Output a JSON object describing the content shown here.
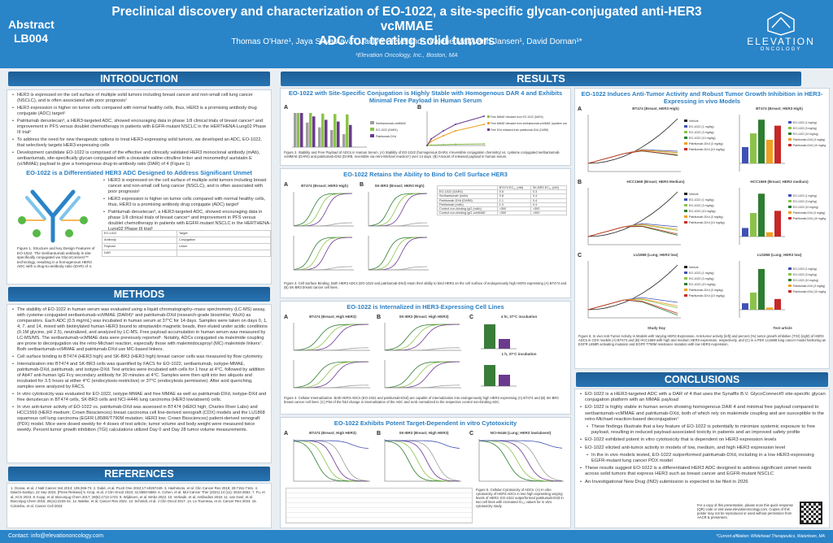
{
  "header": {
    "abstract_label": "Abstract",
    "abstract_id": "LB004",
    "title_line1": "Preclinical discovery and characterization of EO-1022, a site-specific glycan-conjugated anti-HER3 vcMMAE",
    "title_line2": "ADC for treating solid tumors",
    "authors": "Thomas O'Hare¹, Jaya Srivastava¹, Jaclyn Cleveland¹, Valerie Malyvanh Jansen¹, David Dornan¹*",
    "affiliation": "¹Elevation Oncology, Inc., Boston, MA",
    "logo_text": "ELEVATION",
    "logo_sub": "ONCOLOGY"
  },
  "introduction": {
    "heading": "INTRODUCTION",
    "bullets": [
      "HER3 is expressed on the cell surface of multiple solid tumors including breast cancer and non-small cell lung cancer (NSCLC), and is often associated with poor prognosis¹",
      "HER3 expression is higher on tumor cells compared with normal healthy cells, thus, HER3 is a promising antibody drug conjugate (ADC) target²",
      "Patritumab deruxtecan³, a HER3-targeted ADC, showed encouraging data in phase 1/II clinical trials of breast cancer⁴ and improvement in PFS versus doublet chemotherapy in patients with EGFR-mutant NSCLC in the HERTHENA-Lung02 Phase III trial⁵",
      "To address the need for new therapeutic options to treat HER3-expressing solid tumors, we developed an ADC, EO-1022, that selectively targets HER3-expressing cells",
      "Development candidate EO-1022 is comprised of the effective and clinically validated HER3 monoclonal antibody (mAb), seribantumab, site-specifically glycan-conjugated with a cleavable valine-citrulline linker and monomethyl auristatin E (vcMMAE) payload to give a homogenous drug-to-antibody ratio (DAR) of 4 (Figure 1)"
    ],
    "subheading": "EO-1022 is a Differentiated HER3 ADC Designed to Address Significant Unmet",
    "repeat_bullets": [
      "HER3 is expressed on the cell surface of multiple solid tumors including breast cancer and non-small cell lung cancer (NSCLC), and is often associated with poor prognosis¹",
      "HER3 expression is higher on tumor cells compared with normal healthy cells, thus, HER3 is a promising antibody drug conjugate (ADC) target²",
      "Patritumab deruxtecan³, a HER3-targeted ADC, showed encouraging data in phase 1/II clinical trials of breast cancer⁴ and improvement in PFS versus doublet chemotherapy in patients with EGFR-mutant NSCLC in the HERTHENA-Lung02 Phase III trial⁵"
    ],
    "fig1_caption": "Figure 1. Structure and key Design Features of EO-1022. The Seribantumab antibody is site-specifically conjugated via GlycoConnect™ technology, resulting in a homogenous HER3 ADC with a drug-to-antibody ratio (DAR) of 4.",
    "diagram_labels": [
      "EO-1022",
      "Target",
      "Antibody",
      "Conjugation",
      "Payload",
      "Linker",
      "DAR"
    ]
  },
  "methods": {
    "heading": "METHODS",
    "bullets": [
      "The stability of EO-1022 in human serum was evaluated using a liquid chromatography–mass spectrometry (LC-MS) assay, with cysteine-conjugated seribantumab-vcMMAE (DAR4)⁶ and patritumab-DXd (research-grade biosimilar; WuXi) as comparators. Each ADC (0.5 mg/mL) was incubated in human serum at 37°C for 14 days. Samples were taken on days 0, 1, 4, 7, and 14, mixed with biotinylated human HER3 bound to streptavidin magnetic beads, then eluted under acidic conditions (0.1M glycine, pH 2.5), neutralized, and analyzed by LC-MS. Free payload accumulation in human serum was measured by LC-MS/MS. The seribantumab-vcMMAE data were previously reported⁶. Notably, ADCs conjugated via maleimide coupling are prone to deconjugation via the retro-Michael reaction, especially those with maleimidocaproyl (MC) maleimide linkers⁷. Both seribantumab-vcMMAE and patritumab-DXd use MC-based linkers.",
      "Cell surface binding to BT474 (HER3 high) and SK-BR3 (HER3 high) breast cancer cells was measured by flow cytometry.",
      "Internalization into BT474 and SK-BR3 cells was quantified by FACS for EO-1022, seribantumab, isotype-MMAE, patritumab-DXd, patritumab, and isotype-DXd. Test articles were incubated with cells for 1 hour at 4°C, followed by addition of Ab47 anti-human IgG Fcγ secondary antibody for 30 minutes at 4°C. Samples were then split into two aliquots and incubated for 3.5 hours at either 4°C (endocytosis-restrictive) or 37°C (endocytosis permissive). After acid quenching, samples were analyzed by FACS.",
      "In vitro cytotoxicity was evaluated for EO-1022, isotype-MMAE and free MMAE as well as patritumab-DXd, isotype-DXd and free deruxtecan in BT474 cells, SK-BR3 cells and NCI-H446 lung carcinoma (HER3 low/absent) cells.",
      "In vivo anti-tumor activity of EO-1022 vs. patritumab-DXd was assessed in BT474 (HER3 high; Charles River Labs) and HCC1569 (HER3 medium; Crown Biosciences) breast carcinoma cell line-derived xenograft (CDX) models and the LU1868 squamous cell lung carcinoma (EGFR L858R/T790M mutation; HER3 low; Crown Biosciences) patient-derived xenograft (PDX) model. Mice were dosed weekly for 4 doses of test article; tumor volume and body weight were measured twice weekly. Percent tumor growth inhibition (TGI) calculations utilized Day 0 and Day 28 tumor volume measurements."
    ]
  },
  "references": {
    "heading": "REFERENCES",
    "text": "1. Ocana, et al. J Natl Cancer Inst 2013; 105:266-73. 2. Dubé, et al. PLoS One 2022;17:e0267449. 3. Hashimoto, et al. Clin Cancer Res 2019; 25:7151-7161. 4. Daiichi-Sankyo, 22 Sep 2023. [Press Release] 5. Krop, et al. J Clin Oncol 2023; 41:5550-5560. 6. Cohen, et al. Mol Cancer Ther (2021) 14 (11): 2642-2652. 7. Fu, et al. ACS 2023. 8. Kopp, et al. Bioconjug Chem 2017; 28(6):1713-1723. 9. Wijdeven, et al. MAbs 2022. 10. Verkade, et al. Antibodies 2018. 11. van Geel, et al. Bioconjug Chem 2015; 26(11):2233-42. 12. Bakker, et al. Cancer Res 2022. 13. Schmidt, et al. J Clin Oncol 2017. 14. Le Tourneau, et al. Cancer Res 2023. 15. Colombo, et al. Cancer Cell 2023."
  },
  "results": {
    "heading": "RESULTS",
    "stability": {
      "subheading": "EO-1022 with Site-Specific Conjugation is Highly Stable with Homogenous DAR 4 and Exhibits Minimal Free Payload in Human Serum",
      "legend_a": [
        "Seribantumab-vcMMAE",
        "EO-1022 (DAR4)",
        "Patritumab-DXd"
      ],
      "legend_b": [
        "Free MMAE released from EO-1022 (DAR4)",
        "Free MMAE released from seribantumab-vcMMAE (cysteine conjugated)",
        "Free DXd released from patritumab-DXd (DAR8)"
      ],
      "xlabel_b": "Time (Days) in Human Serum",
      "ylabel_b": "Free payload (%)",
      "caption": "Figure 2. Stability and Free Payload of ADCs in Human Serum. (A) Stability of EO-1022 (homogenous DAR4, irreversible conjugation chemistry) vs. cysteine conjugated seribantumab-vcMMAE (DAR4) and patritumab-DXd (DAR8, reversible via retro-Michael reaction⁷) over 14 days. (B) Amount of released payload in human serum."
    },
    "binding": {
      "subheading": "EO-1022 Retains the Ability to Bind to Cell Surface HER3",
      "panel_a_title": "BT474 (Breast; HER3 High)",
      "panel_b_title": "SK-BR3 (Breast; HER3 High)",
      "legend": [
        "EO-1022 (DAR4)",
        "Seribantumab",
        "Control non-binding IgG",
        "Control non-binding IgG-vcMMAE (DAR4)"
      ],
      "table_header": [
        "",
        "BT474 EC₅₀ (nM)",
        "SK-BR3 EC₅₀ (nM)"
      ],
      "table_rows": [
        [
          "EO-1022 (DAR4)",
          "0.6",
          "0.3"
        ],
        [
          "Seribantumab (mAb)",
          "0.8",
          "0.4"
        ],
        [
          "Patritumab-DXd (DAR8)",
          "1.1",
          "0.4"
        ],
        [
          "Patritumab (mAb)",
          "1.0",
          "0.4"
        ],
        [
          "Control non-binding IgG (mAb)",
          ">300",
          ">300"
        ],
        [
          "Control non-binding IgG-vcMMAE",
          ">300",
          ">300"
        ]
      ],
      "caption": "Figure 3. Cell Surface Binding. Both HER3 ADCs (EO-1022 and patritumab-DXd) retain their ability to bind HER3 on the cell surface of endogenously high HER3 expressing (A) BT474 and (B) SK-BR3 breast cancer cell lines."
    },
    "internalization": {
      "subheading": "EO-1022 is Internalized in HER3-Expressing Cell Lines",
      "panel_a_title": "BT474 (Breast; High HER3)",
      "panel_b_title": "SK-BR3 (Breast; High HER3)",
      "panel_c_title_1": "4 hr, 37°C incubation",
      "panel_c_title_2": "1 h, 37°C incubation",
      "legend": [
        "EO-1022 (DAR4)",
        "Patritumab-DXd (DAR8)"
      ],
      "caption": "Figure 4. Cellular Internalization. Both HER3 ADCs (EO-1022 and patritumab-DXd) are capable of internalization into endogenously high HER3 expressing (A) BT474 and (B) SK-BR3 breast cancer cell lines. (C) Plot of the fold change in internalization of the ADC and mAb normalized to the respective control non-binding ADC."
    },
    "cytotox": {
      "subheading": "EO-1022 Exhibits Potent Target-Dependent in vitro Cytotoxicity",
      "panel_a_title": "BT474 (Breast; High HER3)",
      "panel_b_title": "SK-BR3 (Breast; High HER3)",
      "panel_c_title": "NCI-H446 (Lung; HER3 low/absent)",
      "caption": "Figure 5. Cellular Cytotoxicity of ADCs. (A) In vitro cytotoxicity of HER3 ADCs in two high expressing varying levels of HER3. EO-1022 outperformed patritumab-DXd in two cell lines with increased IC₅₀ values for in vitro cytotoxicity study."
    },
    "in_vivo": {
      "subheading": "EO-1022 Induces Anti-Tumor Activity and Robust Tumor Growth Inhibition in HER3-Expressing in vivo Models",
      "panels": [
        {
          "title": "BT474 (Breast, HER3 High)",
          "bar_title": "BT474 (Breast; HER3 High)"
        },
        {
          "title": "HCC1569 (Breast; HER3 Medium)",
          "bar_title": "HCC1569 (Breast; HER3 medium)"
        },
        {
          "title": "LU1868 (Lung; HER3 low)",
          "bar_title": "LU1868 (Lung; HER3 low)"
        }
      ],
      "xlabel": "Study Day",
      "bar_xlabel": "Test article",
      "legend": [
        "Vehicle",
        "EO-1022 (1 mg/kg)",
        "EO-1022 (3 mg/kg)",
        "EO-1022 (10 mg/kg)",
        "Patritumab-DXd (3 mg/kg)",
        "Patritumab-DXd (10 mg/kg)"
      ],
      "caption": "Figure 6. In vivo Anti-Tumor Activity in Models with Varying HER3 Expression. Anti-tumor activity (left) and percent (%) tumor growth inhibition (TGI) (right) of HER3 ADCs in CDX models (A) BT474 and (B) HCC1569 with high and medium HER3 expression, respectively, and (C) in a PDX LU1868 lung cancer model harboring an EGFR L858R activating mutation and EGFR T790M resistance mutation with low HER3 expression."
    }
  },
  "conclusions": {
    "heading": "CONCLUSIONS",
    "bullets": [
      "EO-1022 is a HER3-targeted ADC with a DAR of 4 that uses the Synaffix B.V. GlycoConnect® site-specific glycan conjugation platform with an MMAE payload",
      "EO-1022 is highly stable in human serum showing homogenous DAR 4 and minimal free payload compared to seribantumab-vcMMAE and patritumab-DXd, both of which rely on maleimide coupling and are susceptible to the retro-Michael reaction-based deconjugation⁷",
      "These findings illustrate that a key feature of EO-1022 is potentially to minimize systemic exposure to free payload, resulting in reduced payload-associated toxicity in patients and an improved safety profile",
      "EO-1022 exhibited potent in vitro cytotoxicity that is dependent on HER3 expression levels",
      "EO-1022 elicited anti-tumor activity in models of low, medium, and high HER3 expression level",
      "In the in vivo models tested, EO-1022 outperformed patritumab-DXd, including in a low HER3-expressing EGFR-mutant lung cancer PDX model",
      "These results suggest EO-1022 is a differentiated HER3 ADC designed to address significant unmet needs across solid tumors that express HER3 such as breast cancer and EGFR-mutant NSCLC",
      "An Investigational New Drug (IND) submission is expected to be filed in 2026"
    ],
    "qr_text": "For a copy of this presentation, please scan this quick response (QR) code or visit www.elevationoncology.com. Copies of this poster may not be reproduced or used without permission from AACR & presenters."
  },
  "footer": {
    "contact": "Contact: info@elevationoncology.com",
    "note": "*Current affiliation: Whitehead Therapeutics, Watertown, MA"
  },
  "chart_data": [
    {
      "type": "bar",
      "title": "",
      "series": [
        {
          "name": "Seribantumab-vcMMAE",
          "values": [
            100,
            72,
            58,
            50,
            38
          ]
        },
        {
          "name": "EO-1022 (DAR4)",
          "values": [
            100,
            100,
            98,
            97,
            96
          ]
        },
        {
          "name": "Patritumab-DXd",
          "values": [
            100,
            90,
            80,
            75,
            65
          ]
        }
      ],
      "categories": [
        "0",
        "1",
        "4",
        "7",
        "14"
      ]
    },
    {
      "type": "line",
      "xlabel": "Time (Days) in Human Serum",
      "ylabel": "Free payload (%)",
      "x": [
        0,
        1,
        4,
        7,
        14
      ],
      "series": [
        {
          "name": "Free MMAE released from EO-1022 (DAR4)",
          "values": [
            0,
            0.05,
            0.1,
            0.15,
            0.2
          ]
        },
        {
          "name": "Free MMAE released from seribantumab-vcMMAE (cysteine conjugated)",
          "values": [
            0,
            0.5,
            1.2,
            1.8,
            2.6
          ]
        },
        {
          "name": "Free DXd released from patritumab-DXd (DAR8)",
          "values": [
            0,
            0.8,
            1.8,
            2.6,
            3.6
          ]
        }
      ]
    },
    {
      "type": "bar",
      "xlabel": "Test article",
      "categories": [
        "EO-1022 1",
        "EO-1022 3",
        "EO-1022 10",
        "P-DXd 3",
        "P-DXd 10"
      ],
      "panels": [
        {
          "name": "BT474",
          "values": [
            38,
            70,
            102,
            55,
            88
          ]
        },
        {
          "name": "HCC1569",
          "values": [
            20,
            55,
            100,
            10,
            60
          ]
        },
        {
          "name": "LU1868",
          "values": [
            15,
            40,
            95,
            5,
            25
          ]
        }
      ]
    }
  ]
}
